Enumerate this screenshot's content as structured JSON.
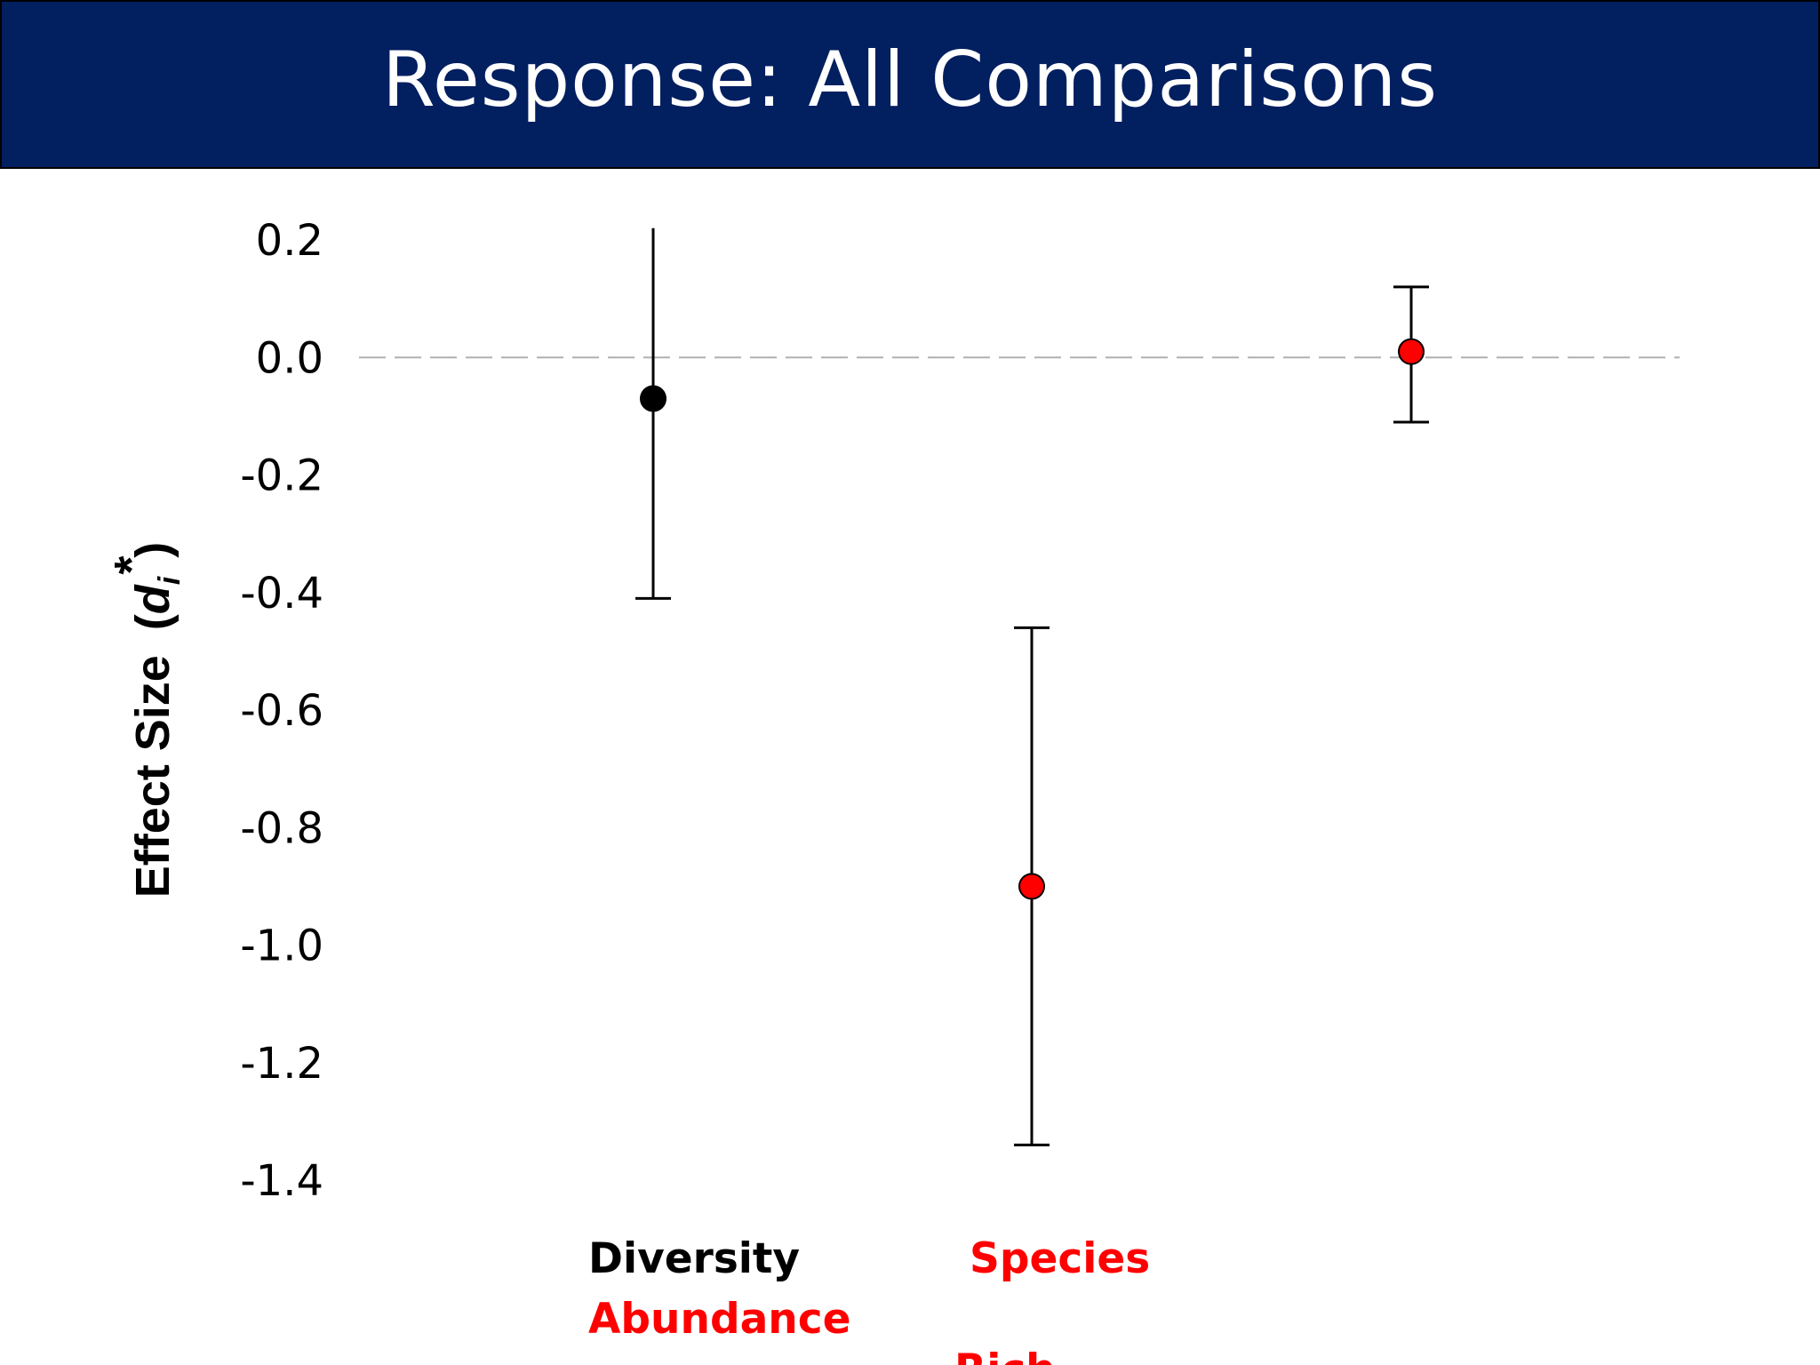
{
  "slide": {
    "title": "Response: All Comparisons"
  },
  "colors": {
    "title_bar": "#021f60",
    "title_text": "#ffffff",
    "black": "#000000",
    "red": "#ff0000",
    "zero_line": "#b0b0b0"
  },
  "chart_data": {
    "type": "scatter",
    "title": "",
    "ylabel": "Effect Size",
    "ylabel_symbol": "(di*)",
    "ylim": [
      -1.4,
      0.2
    ],
    "y_ticks": [
      "0.2",
      "0.0",
      "-0.2",
      "-0.4",
      "-0.6",
      "-0.8",
      "-1.0",
      "-1.2",
      "-1.4"
    ],
    "y_tick_values": [
      0.2,
      0.0,
      -0.2,
      -0.4,
      -0.6,
      -0.8,
      -1.0,
      -1.2,
      -1.4
    ],
    "reference_line": {
      "y": 0.0,
      "style": "dashed"
    },
    "grid": false,
    "series": [
      {
        "category": "Diversity",
        "value": -0.07,
        "ci_low": -0.41,
        "ci_high": 0.25,
        "marker_color": "#000000",
        "label_color": "#000000"
      },
      {
        "category": "Species",
        "value": -0.9,
        "ci_low": -1.34,
        "ci_high": -0.46,
        "marker_color": "#ff0000",
        "label_color": "#ff0000"
      },
      {
        "category": "",
        "value": 0.01,
        "ci_low": -0.11,
        "ci_high": 0.12,
        "marker_color": "#ff0000",
        "label_color": "#ff0000"
      }
    ],
    "category_labels": [
      {
        "text": "Diversity",
        "color": "#000000"
      },
      {
        "text": "Species",
        "color": "#ff0000"
      },
      {
        "text": "Abundance",
        "color": "#ff0000"
      },
      {
        "text": "Rich",
        "color": "#ff0000"
      }
    ]
  }
}
